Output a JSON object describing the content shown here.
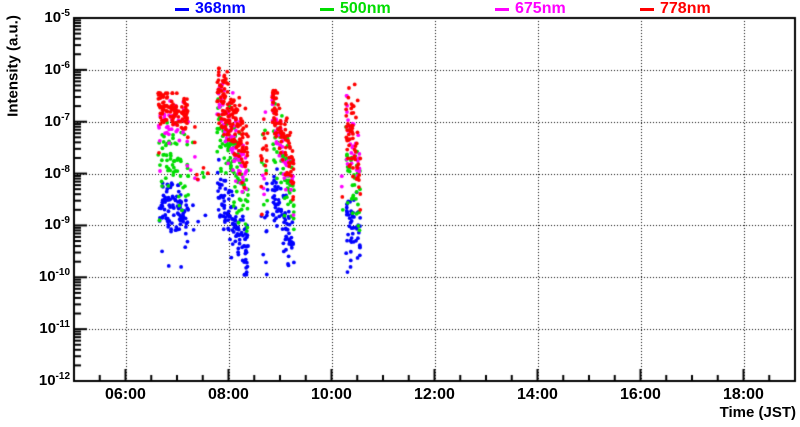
{
  "chart_data": {
    "type": "scatter",
    "title": "",
    "xlabel": "Time (JST)",
    "ylabel": "Intensity (a.u.)",
    "x_axis": {
      "min_hour": 5,
      "max_hour": 19,
      "minor_step_hours": 0.5,
      "major_ticks": [
        {
          "hour": 6,
          "label": "06:00"
        },
        {
          "hour": 8,
          "label": "08:00"
        },
        {
          "hour": 10,
          "label": "10:00"
        },
        {
          "hour": 12,
          "label": "12:00"
        },
        {
          "hour": 14,
          "label": "14:00"
        },
        {
          "hour": 16,
          "label": "16:00"
        },
        {
          "hour": 18,
          "label": "18:00"
        }
      ]
    },
    "y_axis": {
      "scale": "log",
      "max_exp": -5,
      "min_exp": -12,
      "tick_exponents": [
        -5,
        -6,
        -7,
        -8,
        -9,
        -10,
        -11,
        -12
      ]
    },
    "grid": {
      "style": "dotted",
      "color": "#000000",
      "on_major_ticks": true
    },
    "legend_position": "top",
    "marker": {
      "shape": "circle",
      "radius_px": 1.9
    },
    "series": [
      {
        "name": "368nm",
        "color": "#0000ff"
      },
      {
        "name": "500nm",
        "color": "#00dd00"
      },
      {
        "name": "675nm",
        "color": "#ff00ff"
      },
      {
        "name": "778nm",
        "color": "#ff0000"
      }
    ],
    "clusters": [
      {
        "t_start": 6.63,
        "t_end": 7.22,
        "bands": {
          "368nm": {
            "n": 95,
            "lg_start": -8.55,
            "lg_end": -8.78,
            "sigma": 0.24,
            "lg_min": -9.45,
            "lg_max": -8.02
          },
          "500nm": {
            "n": 62,
            "lg_start": -7.5,
            "lg_end": -7.95,
            "sigma": 0.4,
            "lg_min": -8.95,
            "lg_max": -7.02
          },
          "675nm": {
            "n": 38,
            "lg_start": -6.92,
            "lg_end": -7.15,
            "sigma": 0.24,
            "lg_min": -8.1,
            "lg_max": -6.6
          },
          "778nm": {
            "n": 112,
            "lg_start": -6.7,
            "lg_end": -6.85,
            "sigma": 0.17,
            "lg_min": -7.8,
            "lg_max": -6.45
          }
        }
      },
      {
        "t_start": 7.26,
        "t_end": 7.6,
        "bands": {
          "368nm": {
            "n": 4,
            "lg_start": -8.9,
            "lg_end": -9.3,
            "sigma": 0.2,
            "lg_min": -9.6,
            "lg_max": -8.6
          },
          "500nm": {
            "n": 3,
            "lg_start": -7.8,
            "lg_end": -8.2,
            "sigma": 0.3,
            "lg_min": -8.7,
            "lg_max": -7.4
          },
          "675nm": {
            "n": 4,
            "lg_start": -7.6,
            "lg_end": -8.4,
            "sigma": 0.3,
            "lg_min": -8.8,
            "lg_max": -7.2
          },
          "778nm": {
            "n": 6,
            "lg_start": -7.4,
            "lg_end": -8.3,
            "sigma": 0.35,
            "lg_min": -8.7,
            "lg_max": -7.1
          }
        }
      },
      {
        "t_start": 7.78,
        "t_end": 8.38,
        "bands": {
          "368nm": {
            "n": 115,
            "lg_start": -8.3,
            "lg_end": -9.5,
            "sigma": 0.3,
            "lg_min": -9.95,
            "lg_max": -7.55
          },
          "500nm": {
            "n": 105,
            "lg_start": -7.0,
            "lg_end": -8.45,
            "sigma": 0.38,
            "lg_min": -9.15,
            "lg_max": -6.4
          },
          "675nm": {
            "n": 85,
            "lg_start": -6.55,
            "lg_end": -7.95,
            "sigma": 0.33,
            "lg_min": -8.85,
            "lg_max": -6.1
          },
          "778nm": {
            "n": 155,
            "lg_start": -6.35,
            "lg_end": -7.7,
            "sigma": 0.32,
            "lg_min": -8.55,
            "lg_max": -5.97
          }
        }
      },
      {
        "t_start": 8.63,
        "t_end": 8.76,
        "bands": {
          "368nm": {
            "n": 11,
            "lg_start": -8.7,
            "lg_end": -9.0,
            "sigma": 0.5,
            "lg_min": -10.05,
            "lg_max": -7.9
          },
          "500nm": {
            "n": 7,
            "lg_start": -7.7,
            "lg_end": -7.9,
            "sigma": 0.45,
            "lg_min": -8.6,
            "lg_max": -7.1
          },
          "675nm": {
            "n": 5,
            "lg_start": -7.4,
            "lg_end": -7.8,
            "sigma": 0.5,
            "lg_min": -8.4,
            "lg_max": -6.8
          },
          "778nm": {
            "n": 16,
            "lg_start": -7.5,
            "lg_end": -7.9,
            "sigma": 0.55,
            "lg_min": -8.8,
            "lg_max": -6.95
          }
        }
      },
      {
        "t_start": 8.85,
        "t_end": 9.27,
        "bands": {
          "368nm": {
            "n": 75,
            "lg_start": -8.3,
            "lg_end": -9.5,
            "sigma": 0.3,
            "lg_min": -9.95,
            "lg_max": -7.7
          },
          "500nm": {
            "n": 62,
            "lg_start": -7.15,
            "lg_end": -8.5,
            "sigma": 0.38,
            "lg_min": -9.1,
            "lg_max": -6.6
          },
          "675nm": {
            "n": 50,
            "lg_start": -6.8,
            "lg_end": -8.3,
            "sigma": 0.3,
            "lg_min": -8.8,
            "lg_max": -6.5
          },
          "778nm": {
            "n": 92,
            "lg_start": -6.65,
            "lg_end": -8.0,
            "sigma": 0.3,
            "lg_min": -8.5,
            "lg_max": -6.4
          }
        }
      },
      {
        "t_start": 10.28,
        "t_end": 10.56,
        "bands": {
          "368nm": {
            "n": 46,
            "lg_start": -8.8,
            "lg_end": -9.3,
            "sigma": 0.33,
            "lg_min": -9.9,
            "lg_max": -8.25
          },
          "500nm": {
            "n": 34,
            "lg_start": -7.8,
            "lg_end": -8.4,
            "sigma": 0.45,
            "lg_min": -9.2,
            "lg_max": -7.1
          },
          "675nm": {
            "n": 32,
            "lg_start": -7.1,
            "lg_end": -7.8,
            "sigma": 0.4,
            "lg_min": -8.6,
            "lg_max": -6.5
          },
          "778nm": {
            "n": 58,
            "lg_start": -7.0,
            "lg_end": -7.9,
            "sigma": 0.45,
            "lg_min": -8.7,
            "lg_max": -6.35
          }
        }
      }
    ],
    "extra_points": {
      "368nm": [
        [
          6.84,
          -9.78
        ],
        [
          7.08,
          -9.8
        ],
        [
          6.71,
          -9.5
        ],
        [
          7.16,
          -9.42
        ],
        [
          10.31,
          -9.9
        ],
        [
          10.37,
          -9.8
        ]
      ],
      "500nm": [
        [
          6.66,
          -8.9
        ],
        [
          10.22,
          -8.7
        ]
      ],
      "675nm": [
        [
          6.67,
          -7.95
        ],
        [
          7.2,
          -7.85
        ],
        [
          10.2,
          -8.05
        ],
        [
          10.2,
          -8.25
        ]
      ],
      "778nm": [
        [
          6.65,
          -7.6
        ],
        [
          7.21,
          -7.3
        ],
        [
          10.45,
          -6.28
        ],
        [
          10.21,
          -8.45
        ]
      ]
    }
  }
}
